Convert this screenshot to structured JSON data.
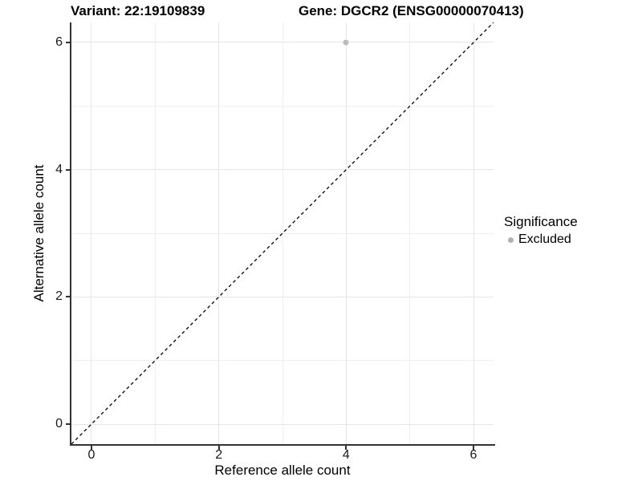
{
  "chart_data": {
    "type": "scatter",
    "titles": {
      "variant": "Variant: 22:19109839",
      "gene": "Gene: DGCR2 (ENSG00000070413)"
    },
    "xlabel": "Reference allele count",
    "ylabel": "Alternative allele count",
    "xlim": [
      -0.315,
      6.315
    ],
    "ylim": [
      -0.315,
      6.315
    ],
    "xticks": [
      0,
      2,
      4,
      6
    ],
    "yticks": [
      0,
      2,
      4,
      6
    ],
    "grid_minor_x": [
      1,
      3,
      5
    ],
    "grid_minor_y": [
      1,
      3,
      5
    ],
    "points": [
      {
        "x": 4,
        "y": 6,
        "significance": "Excluded"
      }
    ],
    "identity_line": {
      "slope": 1,
      "intercept": 0,
      "style": "dashed",
      "color": "#000000"
    },
    "legend": {
      "title": "Significance",
      "position": "right",
      "entries": [
        {
          "label": "Excluded",
          "color": "#b2b2b2"
        }
      ]
    },
    "colors": {
      "point": "#bcbcbc",
      "axis_line": "#333333",
      "grid_major": "#e6e6e6",
      "grid_minor": "#efefef",
      "text": "#000000"
    }
  }
}
